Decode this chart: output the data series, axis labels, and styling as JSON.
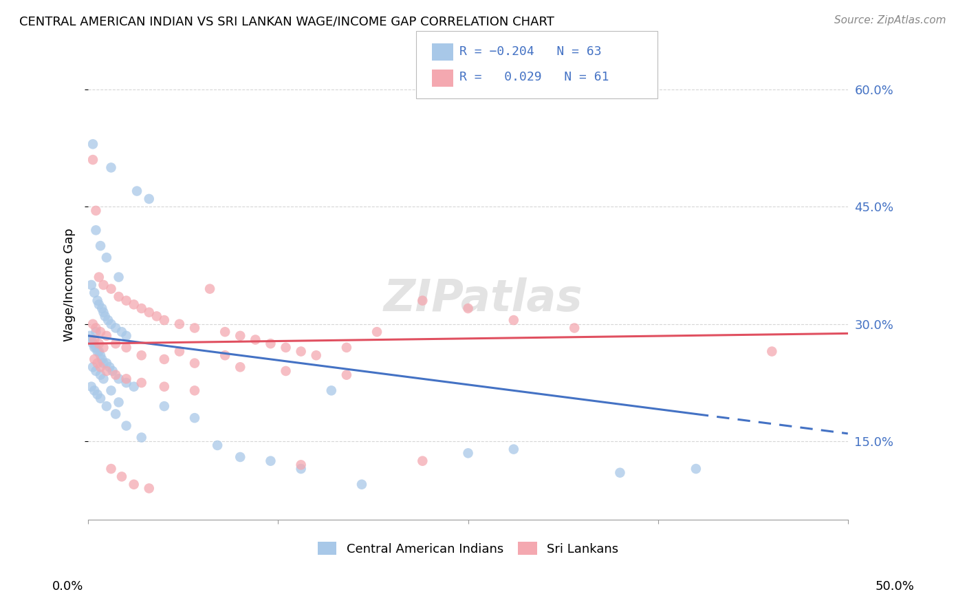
{
  "title": "CENTRAL AMERICAN INDIAN VS SRI LANKAN WAGE/INCOME GAP CORRELATION CHART",
  "source": "Source: ZipAtlas.com",
  "ylabel": "Wage/Income Gap",
  "legend_blue_label": "Central American Indians",
  "legend_pink_label": "Sri Lankans",
  "blue_color": "#a8c8e8",
  "pink_color": "#f4a8b0",
  "blue_line_color": "#4472c4",
  "pink_line_color": "#e05060",
  "watermark": "ZIPatlas",
  "xlim": [
    0.0,
    50.0
  ],
  "ylim": [
    5.0,
    65.0
  ],
  "ytick_vals": [
    15,
    30,
    45,
    60
  ],
  "ytick_labels": [
    "15.0%",
    "30.0%",
    "45.0%",
    "60.0%"
  ],
  "blue_line_x": [
    0,
    50
  ],
  "blue_line_y": [
    28.5,
    16.0
  ],
  "blue_solid_end": 40,
  "pink_line_x": [
    0,
    50
  ],
  "pink_line_y": [
    27.5,
    28.8
  ],
  "background_color": "#ffffff",
  "grid_color": "#cccccc",
  "blue_x": [
    0.3,
    1.5,
    3.2,
    4.0,
    0.5,
    0.8,
    1.2,
    2.0,
    0.2,
    0.4,
    0.6,
    0.7,
    0.9,
    1.0,
    1.1,
    1.3,
    1.5,
    1.8,
    2.2,
    2.5,
    0.1,
    0.2,
    0.3,
    0.4,
    0.5,
    0.6,
    0.7,
    0.8,
    0.9,
    1.0,
    1.2,
    1.4,
    1.6,
    2.0,
    2.5,
    3.0,
    0.3,
    0.5,
    0.8,
    1.0,
    1.5,
    2.0,
    0.2,
    0.4,
    0.6,
    0.8,
    1.2,
    1.8,
    2.5,
    3.5,
    5.0,
    7.0,
    8.5,
    10.0,
    12.0,
    14.0,
    16.0,
    18.0,
    25.0,
    28.0,
    35.0,
    40.0,
    0.5
  ],
  "blue_y": [
    53.0,
    50.0,
    47.0,
    46.0,
    42.0,
    40.0,
    38.5,
    36.0,
    35.0,
    34.0,
    33.0,
    32.5,
    32.0,
    31.5,
    31.0,
    30.5,
    30.0,
    29.5,
    29.0,
    28.5,
    28.5,
    28.0,
    27.5,
    27.0,
    27.0,
    26.5,
    26.5,
    26.0,
    25.5,
    25.0,
    25.0,
    24.5,
    24.0,
    23.0,
    22.5,
    22.0,
    24.5,
    24.0,
    23.5,
    23.0,
    21.5,
    20.0,
    22.0,
    21.5,
    21.0,
    20.5,
    19.5,
    18.5,
    17.0,
    15.5,
    19.5,
    18.0,
    14.5,
    13.0,
    12.5,
    11.5,
    21.5,
    9.5,
    13.5,
    14.0,
    11.0,
    11.5,
    29.0
  ],
  "pink_x": [
    0.3,
    0.5,
    0.7,
    1.0,
    1.5,
    2.0,
    2.5,
    3.0,
    3.5,
    4.0,
    4.5,
    5.0,
    6.0,
    7.0,
    8.0,
    9.0,
    10.0,
    11.0,
    12.0,
    13.0,
    14.0,
    15.0,
    17.0,
    19.0,
    22.0,
    25.0,
    28.0,
    32.0,
    0.4,
    0.6,
    0.8,
    1.2,
    1.8,
    2.5,
    3.5,
    5.0,
    7.0,
    0.3,
    0.5,
    0.8,
    1.2,
    1.8,
    2.5,
    3.5,
    5.0,
    7.0,
    10.0,
    13.0,
    17.0,
    22.0,
    0.4,
    0.7,
    1.0,
    1.5,
    2.2,
    3.0,
    4.0,
    6.0,
    9.0,
    14.0,
    45.0
  ],
  "pink_y": [
    51.0,
    44.5,
    36.0,
    35.0,
    34.5,
    33.5,
    33.0,
    32.5,
    32.0,
    31.5,
    31.0,
    30.5,
    30.0,
    29.5,
    34.5,
    29.0,
    28.5,
    28.0,
    27.5,
    27.0,
    26.5,
    26.0,
    27.0,
    29.0,
    33.0,
    32.0,
    30.5,
    29.5,
    25.5,
    25.0,
    24.5,
    24.0,
    23.5,
    23.0,
    22.5,
    22.0,
    21.5,
    30.0,
    29.5,
    29.0,
    28.5,
    27.5,
    27.0,
    26.0,
    25.5,
    25.0,
    24.5,
    24.0,
    23.5,
    12.5,
    28.0,
    27.5,
    27.0,
    11.5,
    10.5,
    9.5,
    9.0,
    26.5,
    26.0,
    12.0,
    26.5
  ]
}
